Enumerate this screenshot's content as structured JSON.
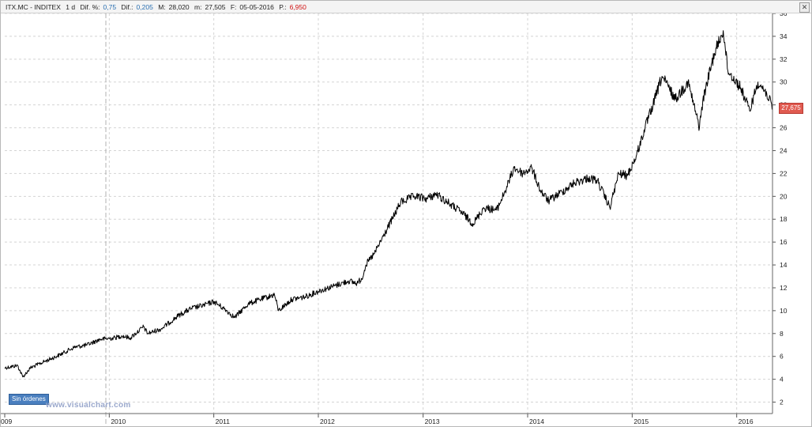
{
  "infobar": {
    "ticker": "ITX.MC - INDITEX",
    "interval": "1 d",
    "dif_pct_label": "Dif. %:",
    "dif_pct_value": "0,75",
    "dif_label": "Dif.:",
    "dif_value": "0,205",
    "max_label": "M:",
    "max_value": "28,020",
    "min_label": "m:",
    "min_value": "27,505",
    "date_label": "F:",
    "date_value": "05-05-2016",
    "p_label": "P.:",
    "p_value": "6,950"
  },
  "badge_label": "Sin órdenes",
  "watermark": "www.visualchart.com",
  "last_price_label": "27,675",
  "colors": {
    "line": "#000000",
    "grid": "#d4d4d4",
    "price_tag": "#e05a50",
    "badge": "#4a7fbf",
    "watermark": "#9aa8cc"
  },
  "chart_data": {
    "type": "line",
    "title": "",
    "xlabel": "",
    "ylabel": "",
    "x_axis_type": "date",
    "xlim": [
      "2009-01-01",
      "2016-05-05"
    ],
    "ylim": [
      1,
      36
    ],
    "y_ticks": [
      2,
      4,
      6,
      8,
      10,
      12,
      14,
      16,
      18,
      20,
      22,
      24,
      26,
      28,
      30,
      32,
      34,
      36
    ],
    "y_tick_labels": [
      "2",
      "4",
      "6",
      "8",
      "10",
      "12",
      "14",
      "16",
      "18",
      "20",
      "22",
      "24",
      "26",
      "28",
      "30",
      "32",
      "34",
      "36"
    ],
    "x_ticks": [
      "2009-01-01",
      "2010-01-01",
      "2011-01-01",
      "2012-01-01",
      "2013-01-01",
      "2014-01-01",
      "2015-01-01",
      "2016-01-01"
    ],
    "x_tick_labels": [
      "009",
      "2010",
      "2011",
      "2012",
      "2013",
      "2014",
      "2015",
      "2016"
    ],
    "grid": true,
    "legend": "none",
    "series": [
      {
        "x": [
          "2009-01-01",
          "2009-02-15",
          "2009-03-05",
          "2009-04-01",
          "2009-05-15",
          "2009-07-01",
          "2009-09-01",
          "2009-10-15",
          "2009-12-01",
          "2010-01-15",
          "2010-02-15",
          "2010-03-15",
          "2010-05-01",
          "2010-05-15",
          "2010-07-01",
          "2010-09-01",
          "2010-10-15",
          "2010-12-01",
          "2011-01-01",
          "2011-02-15",
          "2011-03-15",
          "2011-05-01",
          "2011-06-15",
          "2011-08-01",
          "2011-08-15",
          "2011-10-01",
          "2011-11-15",
          "2012-01-01",
          "2012-03-01",
          "2012-04-15",
          "2012-05-15",
          "2012-06-01",
          "2012-06-15",
          "2012-07-15",
          "2012-08-15",
          "2012-09-15",
          "2012-10-15",
          "2012-12-01",
          "2013-01-15",
          "2013-02-15",
          "2013-04-01",
          "2013-05-15",
          "2013-06-25",
          "2013-08-01",
          "2013-09-15",
          "2013-10-15",
          "2013-11-15",
          "2013-12-15",
          "2014-01-15",
          "2014-02-15",
          "2014-03-15",
          "2014-05-01",
          "2014-06-15",
          "2014-08-01",
          "2014-09-01",
          "2014-10-15",
          "2014-11-15",
          "2014-12-15",
          "2015-01-15",
          "2015-02-15",
          "2015-03-15",
          "2015-04-15",
          "2015-06-01",
          "2015-07-15",
          "2015-08-24",
          "2015-09-01",
          "2015-09-15",
          "2015-10-15",
          "2015-11-15",
          "2015-12-01",
          "2016-01-15",
          "2016-02-15",
          "2016-03-15",
          "2016-04-15",
          "2016-05-05"
        ],
        "y": [
          5.0,
          5.2,
          4.2,
          5.0,
          5.5,
          6.0,
          6.8,
          7.0,
          7.5,
          7.6,
          7.8,
          7.6,
          8.6,
          8.0,
          8.4,
          9.6,
          10.2,
          10.5,
          10.8,
          10.0,
          9.4,
          10.6,
          11.0,
          11.4,
          10.0,
          11.0,
          11.2,
          11.7,
          12.2,
          12.6,
          12.4,
          12.8,
          14.0,
          15.0,
          16.5,
          18.0,
          19.5,
          20.0,
          19.8,
          20.2,
          19.4,
          18.6,
          17.6,
          19.0,
          18.8,
          20.5,
          22.5,
          22.0,
          22.5,
          20.5,
          19.6,
          20.4,
          21.2,
          21.6,
          21.4,
          19.0,
          22.0,
          21.8,
          23.5,
          26.0,
          28.0,
          30.5,
          28.5,
          30.0,
          26.0,
          27.8,
          29.5,
          32.5,
          34.5,
          31.0,
          29.5,
          27.5,
          30.0,
          29.0,
          27.7
        ]
      }
    ]
  }
}
